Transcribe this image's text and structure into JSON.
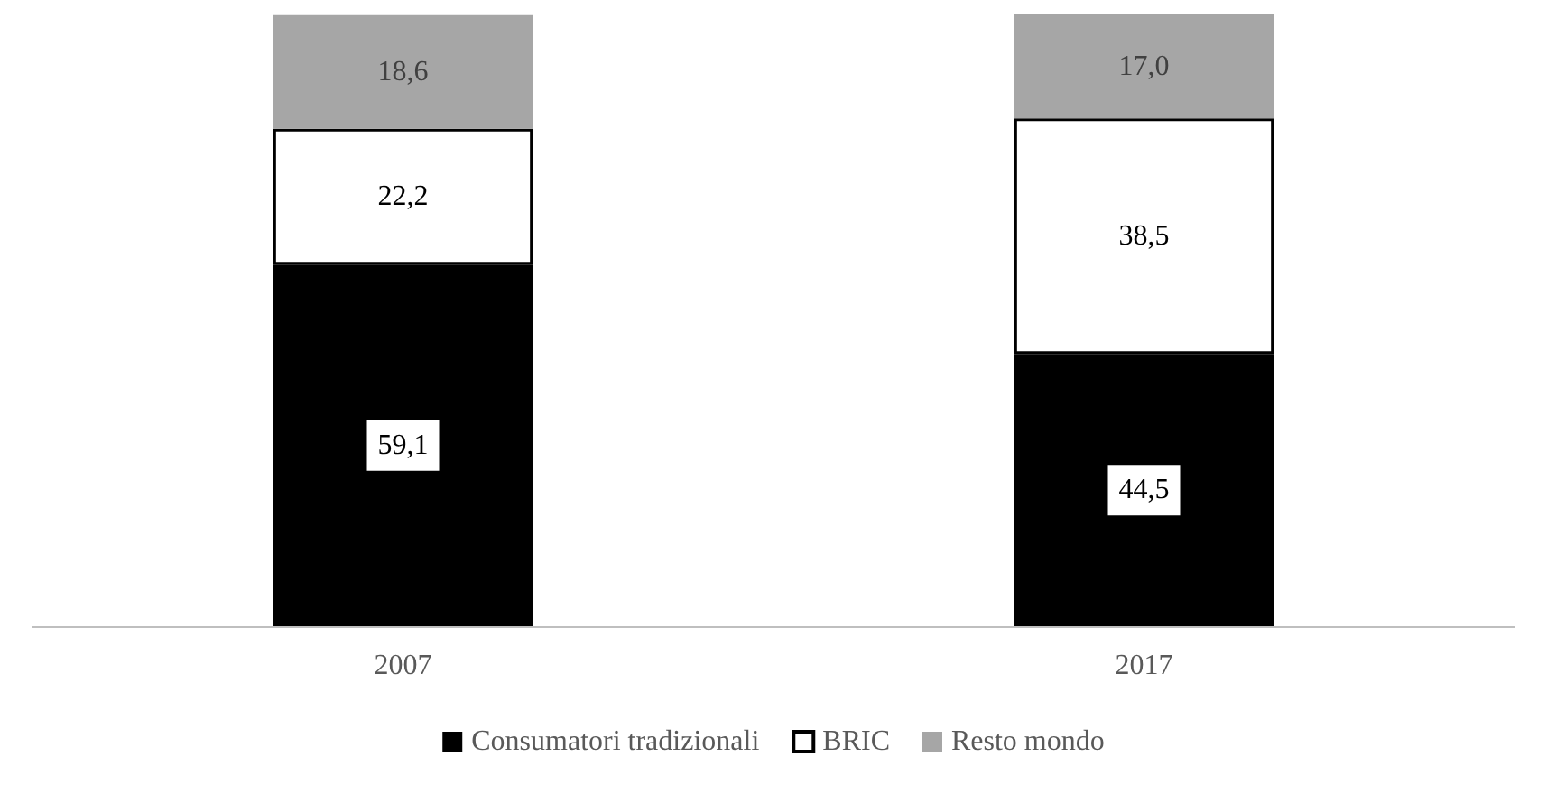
{
  "chart_data": {
    "type": "bar",
    "stacked": true,
    "categories": [
      "2007",
      "2017"
    ],
    "series": [
      {
        "name": "Consumatori tradizionali",
        "color": "#000000",
        "values": [
          59.1,
          44.5
        ],
        "value_labels": [
          "59,1",
          "44,5"
        ]
      },
      {
        "name": "BRIC",
        "color": "#ffffff",
        "values": [
          22.2,
          38.5
        ],
        "value_labels": [
          "22,2",
          "38,5"
        ]
      },
      {
        "name": "Resto mondo",
        "color": "#a6a6a6",
        "values": [
          18.6,
          17.0
        ],
        "value_labels": [
          "18,6",
          "17,0"
        ]
      }
    ],
    "legend": "bottom",
    "tick_labels": "x"
  }
}
